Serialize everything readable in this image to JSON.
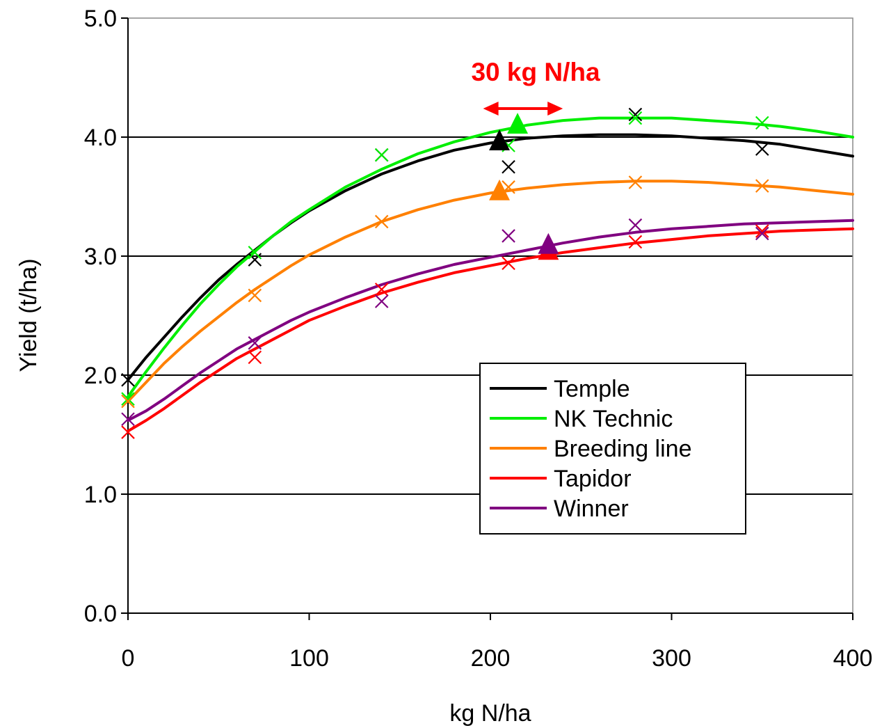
{
  "chart_data": {
    "type": "line",
    "xlabel": "kg N/ha",
    "ylabel": "Yield (t/ha)",
    "xlim": [
      0,
      400
    ],
    "ylim": [
      0,
      5
    ],
    "x_ticks": [
      0,
      100,
      200,
      300,
      400
    ],
    "x_tick_labels": [
      "0",
      "100",
      "200",
      "300",
      "400"
    ],
    "y_ticks": [
      0,
      1,
      2,
      3,
      4,
      5
    ],
    "y_tick_labels": [
      "0.0",
      "1.0",
      "2.0",
      "3.0",
      "4.0",
      "5.0"
    ],
    "grid": "horizontal",
    "legend_position": "bottom-right",
    "annotation": {
      "text": "30 kg N/ha",
      "color": "#ff0000",
      "arrow_from_x": 196,
      "arrow_to_x": 240,
      "arrow_y": 4.24
    },
    "series": [
      {
        "name": "Temple",
        "color": "#000000",
        "points": [
          [
            0,
            1.96
          ],
          [
            70,
            2.97
          ],
          [
            140,
            3.85
          ],
          [
            210,
            3.75
          ],
          [
            280,
            4.19
          ],
          [
            350,
            3.9
          ]
        ],
        "curve": [
          [
            0,
            1.96
          ],
          [
            10,
            2.15
          ],
          [
            20,
            2.32
          ],
          [
            30,
            2.49
          ],
          [
            40,
            2.65
          ],
          [
            50,
            2.8
          ],
          [
            60,
            2.93
          ],
          [
            70,
            3.05
          ],
          [
            80,
            3.17
          ],
          [
            90,
            3.28
          ],
          [
            100,
            3.38
          ],
          [
            120,
            3.55
          ],
          [
            140,
            3.69
          ],
          [
            160,
            3.8
          ],
          [
            180,
            3.89
          ],
          [
            200,
            3.95
          ],
          [
            220,
            3.99
          ],
          [
            240,
            4.01
          ],
          [
            260,
            4.02
          ],
          [
            280,
            4.02
          ],
          [
            300,
            4.01
          ],
          [
            320,
            3.99
          ],
          [
            340,
            3.97
          ],
          [
            360,
            3.94
          ],
          [
            380,
            3.89
          ],
          [
            400,
            3.84
          ]
        ],
        "optimum": [
          205,
          3.95
        ]
      },
      {
        "name": "NK Technic",
        "color": "#00ee00",
        "points": [
          [
            0,
            1.8
          ],
          [
            70,
            3.03
          ],
          [
            140,
            3.85
          ],
          [
            210,
            3.93
          ],
          [
            280,
            4.16
          ],
          [
            350,
            4.12
          ]
        ],
        "curve": [
          [
            0,
            1.82
          ],
          [
            10,
            2.03
          ],
          [
            20,
            2.23
          ],
          [
            30,
            2.42
          ],
          [
            40,
            2.6
          ],
          [
            50,
            2.76
          ],
          [
            60,
            2.91
          ],
          [
            70,
            3.04
          ],
          [
            80,
            3.17
          ],
          [
            90,
            3.29
          ],
          [
            100,
            3.39
          ],
          [
            120,
            3.58
          ],
          [
            140,
            3.73
          ],
          [
            160,
            3.86
          ],
          [
            180,
            3.96
          ],
          [
            200,
            4.04
          ],
          [
            220,
            4.1
          ],
          [
            240,
            4.14
          ],
          [
            260,
            4.16
          ],
          [
            280,
            4.16
          ],
          [
            300,
            4.16
          ],
          [
            320,
            4.14
          ],
          [
            340,
            4.12
          ],
          [
            360,
            4.09
          ],
          [
            380,
            4.05
          ],
          [
            400,
            4.0
          ]
        ],
        "optimum": [
          215,
          4.09
        ]
      },
      {
        "name": "Breeding line",
        "color": "#ff8000",
        "points": [
          [
            0,
            1.78
          ],
          [
            70,
            2.67
          ],
          [
            140,
            3.29
          ],
          [
            210,
            3.58
          ],
          [
            280,
            3.62
          ],
          [
            350,
            3.59
          ]
        ],
        "curve": [
          [
            0,
            1.78
          ],
          [
            10,
            1.94
          ],
          [
            20,
            2.1
          ],
          [
            30,
            2.24
          ],
          [
            40,
            2.37
          ],
          [
            50,
            2.49
          ],
          [
            60,
            2.61
          ],
          [
            70,
            2.72
          ],
          [
            80,
            2.82
          ],
          [
            90,
            2.92
          ],
          [
            100,
            3.01
          ],
          [
            120,
            3.16
          ],
          [
            140,
            3.29
          ],
          [
            160,
            3.39
          ],
          [
            180,
            3.47
          ],
          [
            200,
            3.53
          ],
          [
            220,
            3.57
          ],
          [
            240,
            3.6
          ],
          [
            260,
            3.62
          ],
          [
            280,
            3.63
          ],
          [
            300,
            3.63
          ],
          [
            320,
            3.62
          ],
          [
            340,
            3.6
          ],
          [
            360,
            3.58
          ],
          [
            380,
            3.55
          ],
          [
            400,
            3.52
          ]
        ],
        "optimum": [
          205,
          3.53
        ]
      },
      {
        "name": "Tapidor",
        "color": "#ff0000",
        "points": [
          [
            0,
            1.52
          ],
          [
            70,
            2.15
          ],
          [
            140,
            2.72
          ],
          [
            210,
            2.94
          ],
          [
            280,
            3.12
          ],
          [
            350,
            3.21
          ]
        ],
        "curve": [
          [
            0,
            1.53
          ],
          [
            10,
            1.62
          ],
          [
            20,
            1.72
          ],
          [
            30,
            1.83
          ],
          [
            40,
            1.94
          ],
          [
            50,
            2.04
          ],
          [
            60,
            2.14
          ],
          [
            70,
            2.22
          ],
          [
            80,
            2.3
          ],
          [
            90,
            2.38
          ],
          [
            100,
            2.46
          ],
          [
            120,
            2.58
          ],
          [
            140,
            2.69
          ],
          [
            160,
            2.78
          ],
          [
            180,
            2.86
          ],
          [
            200,
            2.92
          ],
          [
            220,
            2.98
          ],
          [
            240,
            3.03
          ],
          [
            260,
            3.07
          ],
          [
            280,
            3.11
          ],
          [
            300,
            3.14
          ],
          [
            320,
            3.17
          ],
          [
            340,
            3.19
          ],
          [
            360,
            3.21
          ],
          [
            380,
            3.22
          ],
          [
            400,
            3.23
          ]
        ],
        "optimum": [
          232,
          3.03
        ]
      },
      {
        "name": "Winner",
        "color": "#800080",
        "points": [
          [
            0,
            1.63
          ],
          [
            70,
            2.27
          ],
          [
            140,
            2.62
          ],
          [
            210,
            3.17
          ],
          [
            280,
            3.26
          ],
          [
            350,
            3.19
          ]
        ],
        "curve": [
          [
            0,
            1.62
          ],
          [
            10,
            1.7
          ],
          [
            20,
            1.8
          ],
          [
            30,
            1.91
          ],
          [
            40,
            2.02
          ],
          [
            50,
            2.12
          ],
          [
            60,
            2.22
          ],
          [
            70,
            2.3
          ],
          [
            80,
            2.38
          ],
          [
            90,
            2.46
          ],
          [
            100,
            2.53
          ],
          [
            120,
            2.65
          ],
          [
            140,
            2.76
          ],
          [
            160,
            2.85
          ],
          [
            180,
            2.93
          ],
          [
            200,
            2.99
          ],
          [
            220,
            3.05
          ],
          [
            240,
            3.11
          ],
          [
            260,
            3.16
          ],
          [
            280,
            3.2
          ],
          [
            300,
            3.23
          ],
          [
            320,
            3.25
          ],
          [
            340,
            3.27
          ],
          [
            360,
            3.28
          ],
          [
            380,
            3.29
          ],
          [
            400,
            3.3
          ]
        ],
        "optimum": [
          232,
          3.08
        ]
      }
    ]
  }
}
